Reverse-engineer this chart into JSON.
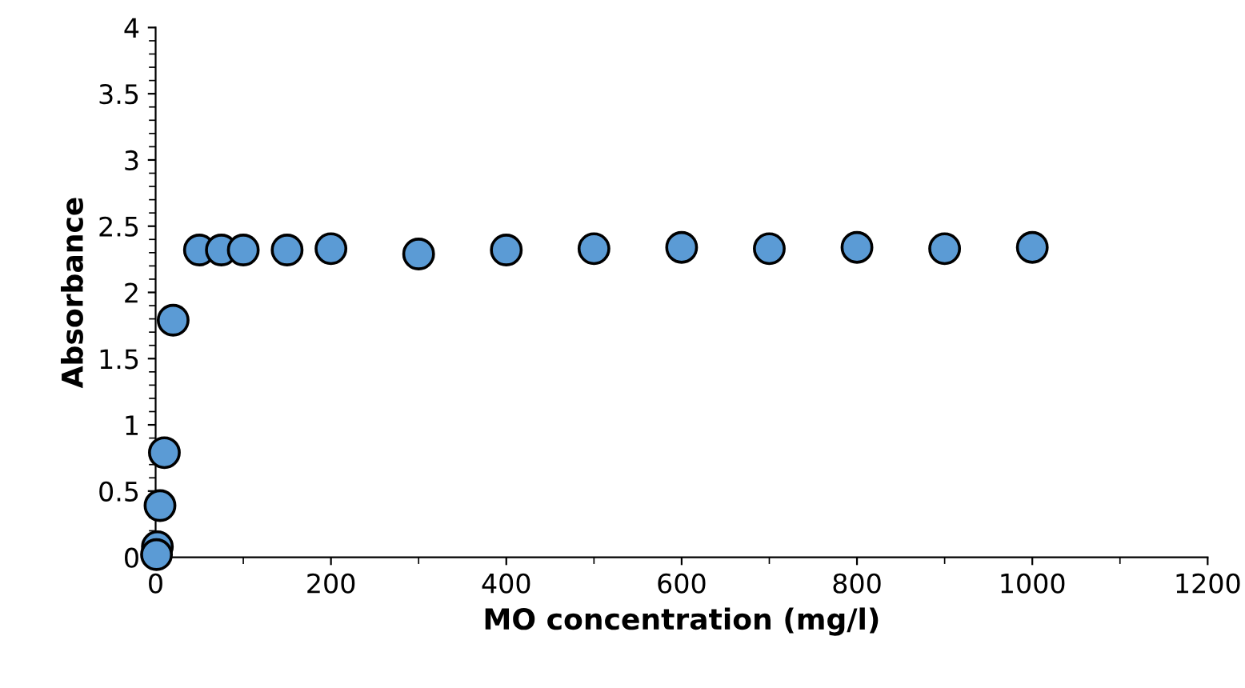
{
  "chart_data": {
    "type": "scatter",
    "xlabel": "MO concentration (mg/l)",
    "ylabel": "Absorbance",
    "x": [
      2,
      1,
      5,
      10,
      20,
      50,
      75,
      100,
      150,
      200,
      300,
      400,
      500,
      600,
      700,
      800,
      900,
      1000
    ],
    "series": [
      {
        "color": "#5b9bd5",
        "values": [
          0.08,
          0.02,
          0.39,
          0.79,
          1.79,
          2.32,
          2.32,
          2.32,
          2.32,
          2.33,
          2.29,
          2.32,
          2.33,
          2.34,
          2.33,
          2.34,
          2.33,
          2.34
        ]
      }
    ],
    "marker": "circle",
    "xlim": [
      0,
      1200
    ],
    "xticks": [
      0,
      200,
      400,
      600,
      800,
      1000,
      1200
    ],
    "ylim": [
      0,
      4
    ],
    "yticks": [
      0,
      0.5,
      1,
      1.5,
      2,
      2.5,
      3,
      3.5,
      4
    ],
    "grid": false,
    "legend": false
  }
}
